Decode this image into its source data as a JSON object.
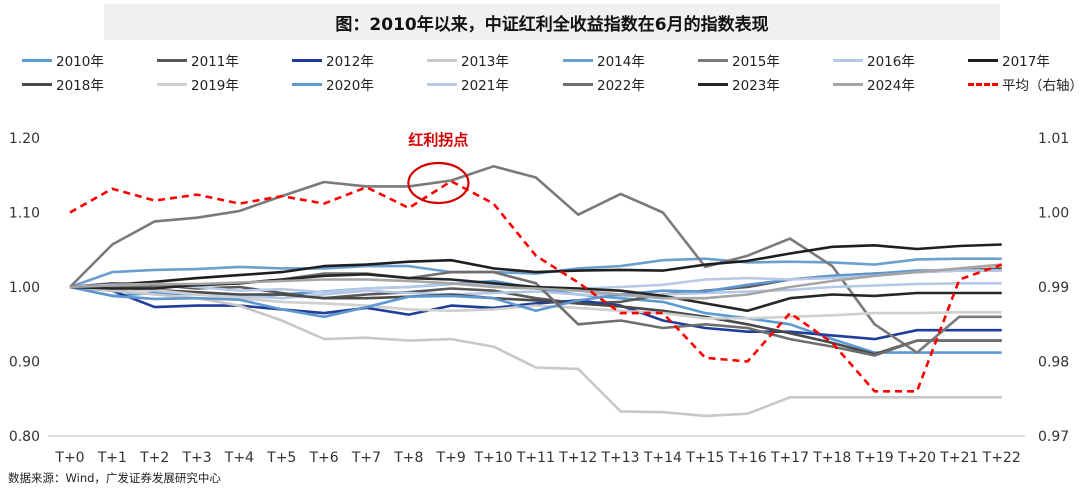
{
  "title": "图：2010年以来，中证红利全收益指数在6月的指数表现",
  "source": "数据来源：Wind，广发证券发展研究中心",
  "annotation": "红利拐点",
  "colors": {
    "2010": "#5b9bd5",
    "2011": "#595959",
    "2012": "#1f3d99",
    "2013": "#c8c8c8",
    "2014": "#6a9fd0",
    "2015": "#7a7a7a",
    "2016": "#b4c7e7",
    "2017": "#1f1f1f",
    "2018": "#4a4a4a",
    "2019": "#cfcfcf",
    "2020": "#5f97cf",
    "2021": "#b8c9e8",
    "2022": "#6e6e6e",
    "2023": "#262626",
    "2024": "#a5a5a5",
    "avg": "#ff0000"
  },
  "chart_data": {
    "type": "line",
    "title": "图：2010年以来，中证红利全收益指数在6月的指数表现",
    "categories": [
      "T+0",
      "T+1",
      "T+2",
      "T+3",
      "T+4",
      "T+5",
      "T+6",
      "T+7",
      "T+8",
      "T+9",
      "T+10",
      "T+11",
      "T+12",
      "T+13",
      "T+14",
      "T+15",
      "T+16",
      "T+17",
      "T+18",
      "T+19",
      "T+20",
      "T+21",
      "T+22"
    ],
    "y_left": {
      "min": 0.8,
      "max": 1.2,
      "ticks": [
        "0.80",
        "0.90",
        "1.00",
        "1.10",
        "1.20"
      ]
    },
    "y_right": {
      "min": 0.97,
      "max": 1.01,
      "ticks": [
        "0.97",
        "0.98",
        "0.99",
        "1.00",
        "1.01"
      ]
    },
    "grid": false,
    "legend_position": "top",
    "series": [
      {
        "name": "2010年",
        "key": "2010",
        "axis": "left",
        "values": [
          1.0,
          0.988,
          0.992,
          0.99,
          0.986,
          0.99,
          0.994,
          0.998,
          1.0,
          1.004,
          1.008,
          0.998,
          0.99,
          0.985,
          0.98,
          0.965,
          0.958,
          0.95,
          0.93,
          0.912,
          0.912,
          0.912,
          0.912
        ]
      },
      {
        "name": "2011年",
        "key": "2011",
        "axis": "left",
        "values": [
          1.0,
          1.005,
          1.003,
          0.998,
          1.0,
          0.992,
          0.985,
          0.99,
          0.993,
          0.998,
          0.995,
          0.985,
          0.978,
          0.98,
          0.99,
          0.995,
          1.0,
          1.01,
          1.015,
          1.018,
          1.02,
          1.022,
          1.025
        ]
      },
      {
        "name": "2012年",
        "key": "2012",
        "axis": "left",
        "values": [
          1.0,
          0.995,
          0.973,
          0.975,
          0.975,
          0.97,
          0.965,
          0.972,
          0.963,
          0.975,
          0.972,
          0.978,
          0.982,
          0.975,
          0.955,
          0.945,
          0.94,
          0.94,
          0.935,
          0.93,
          0.942,
          0.942,
          0.942
        ]
      },
      {
        "name": "2013年",
        "key": "2013",
        "axis": "left",
        "values": [
          1.0,
          0.995,
          0.99,
          0.985,
          0.975,
          0.955,
          0.93,
          0.932,
          0.928,
          0.93,
          0.92,
          0.892,
          0.89,
          0.833,
          0.832,
          0.827,
          0.83,
          0.852,
          0.852,
          0.852,
          0.852,
          0.852,
          0.852
        ]
      },
      {
        "name": "2014年",
        "key": "2014",
        "axis": "left",
        "values": [
          1.0,
          1.02,
          1.023,
          1.024,
          1.027,
          1.025,
          1.025,
          1.028,
          1.028,
          1.02,
          1.02,
          1.018,
          1.025,
          1.028,
          1.036,
          1.038,
          1.033,
          1.034,
          1.033,
          1.03,
          1.037,
          1.038,
          1.038
        ]
      },
      {
        "name": "2015年",
        "key": "2015",
        "axis": "left",
        "values": [
          1.0,
          1.057,
          1.088,
          1.093,
          1.102,
          1.122,
          1.141,
          1.135,
          1.135,
          1.143,
          1.162,
          1.147,
          1.097,
          1.125,
          1.1,
          1.027,
          1.042,
          1.065,
          1.028,
          0.95,
          0.912,
          0.96,
          0.96
        ]
      },
      {
        "name": "2016年",
        "key": "2016",
        "axis": "left",
        "values": [
          1.0,
          0.998,
          0.995,
          0.99,
          0.988,
          0.985,
          0.99,
          0.995,
          0.992,
          0.99,
          0.992,
          0.994,
          0.99,
          0.988,
          0.99,
          0.992,
          0.994,
          0.996,
          1.0,
          1.002,
          1.004,
          1.005,
          1.005
        ]
      },
      {
        "name": "2017年",
        "key": "2017",
        "axis": "left",
        "values": [
          1.0,
          1.003,
          1.007,
          1.012,
          1.016,
          1.02,
          1.028,
          1.03,
          1.034,
          1.036,
          1.025,
          1.02,
          1.022,
          1.023,
          1.022,
          1.03,
          1.035,
          1.045,
          1.054,
          1.056,
          1.051,
          1.055,
          1.057
        ]
      },
      {
        "name": "2018年",
        "key": "2018",
        "axis": "left",
        "values": [
          1.0,
          0.998,
          0.996,
          0.993,
          0.99,
          0.99,
          0.985,
          0.985,
          0.987,
          0.99,
          0.985,
          0.982,
          0.978,
          0.974,
          0.968,
          0.96,
          0.95,
          0.938,
          0.925,
          0.91,
          0.928,
          0.928,
          0.928
        ]
      },
      {
        "name": "2019年",
        "key": "2019",
        "axis": "left",
        "values": [
          1.0,
          0.998,
          0.996,
          0.99,
          0.985,
          0.98,
          0.978,
          0.975,
          0.97,
          0.968,
          0.97,
          0.975,
          0.972,
          0.968,
          0.965,
          0.958,
          0.958,
          0.96,
          0.962,
          0.965,
          0.965,
          0.966,
          0.966
        ]
      },
      {
        "name": "2020年",
        "key": "2020",
        "axis": "left",
        "values": [
          1.0,
          0.988,
          0.984,
          0.985,
          0.983,
          0.97,
          0.96,
          0.973,
          0.987,
          0.988,
          0.985,
          0.968,
          0.982,
          0.99,
          0.995,
          0.994,
          1.003,
          1.01,
          1.015,
          1.018,
          1.022,
          1.022,
          1.022
        ]
      },
      {
        "name": "2021年",
        "key": "2021",
        "axis": "left",
        "values": [
          1.0,
          1.003,
          1.004,
          1.0,
          0.995,
          0.997,
          0.993,
          0.998,
          1.0,
          1.005,
          1.002,
          1.0,
          0.998,
          1.0,
          1.003,
          1.01,
          1.012,
          1.01,
          1.012,
          1.015,
          1.02,
          1.022,
          1.022
        ]
      },
      {
        "name": "2022年",
        "key": "2022",
        "axis": "left",
        "values": [
          1.0,
          1.0,
          1.0,
          1.002,
          1.005,
          1.01,
          1.018,
          1.018,
          1.012,
          1.02,
          1.02,
          1.005,
          0.95,
          0.955,
          0.945,
          0.95,
          0.945,
          0.93,
          0.92,
          0.908,
          0.928,
          0.928,
          0.928
        ]
      },
      {
        "name": "2023年",
        "key": "2023",
        "axis": "left",
        "values": [
          1.0,
          0.998,
          0.998,
          1.003,
          1.005,
          1.01,
          1.015,
          1.017,
          1.012,
          1.01,
          1.005,
          1.0,
          0.998,
          0.995,
          0.988,
          0.978,
          0.968,
          0.985,
          0.99,
          0.988,
          0.992,
          0.992,
          0.992
        ]
      },
      {
        "name": "2024年",
        "key": "2024",
        "axis": "left",
        "values": [
          1.0,
          1.002,
          1.004,
          1.004,
          1.006,
          1.008,
          1.01,
          1.01,
          1.008,
          1.005,
          1.0,
          0.998,
          0.995,
          0.99,
          0.985,
          0.985,
          0.99,
          1.0,
          1.008,
          1.015,
          1.02,
          1.025,
          1.03
        ]
      },
      {
        "name": "平均（右轴）",
        "key": "avg",
        "axis": "right",
        "dashed": true,
        "values": [
          1.0,
          1.0032,
          1.0016,
          1.0024,
          1.0012,
          1.0022,
          1.0012,
          1.0034,
          1.0006,
          1.0042,
          1.0012,
          0.9942,
          0.9906,
          0.9865,
          0.9865,
          0.9805,
          0.98,
          0.9865,
          0.9825,
          0.976,
          0.976,
          0.991,
          0.993
        ]
      }
    ]
  }
}
